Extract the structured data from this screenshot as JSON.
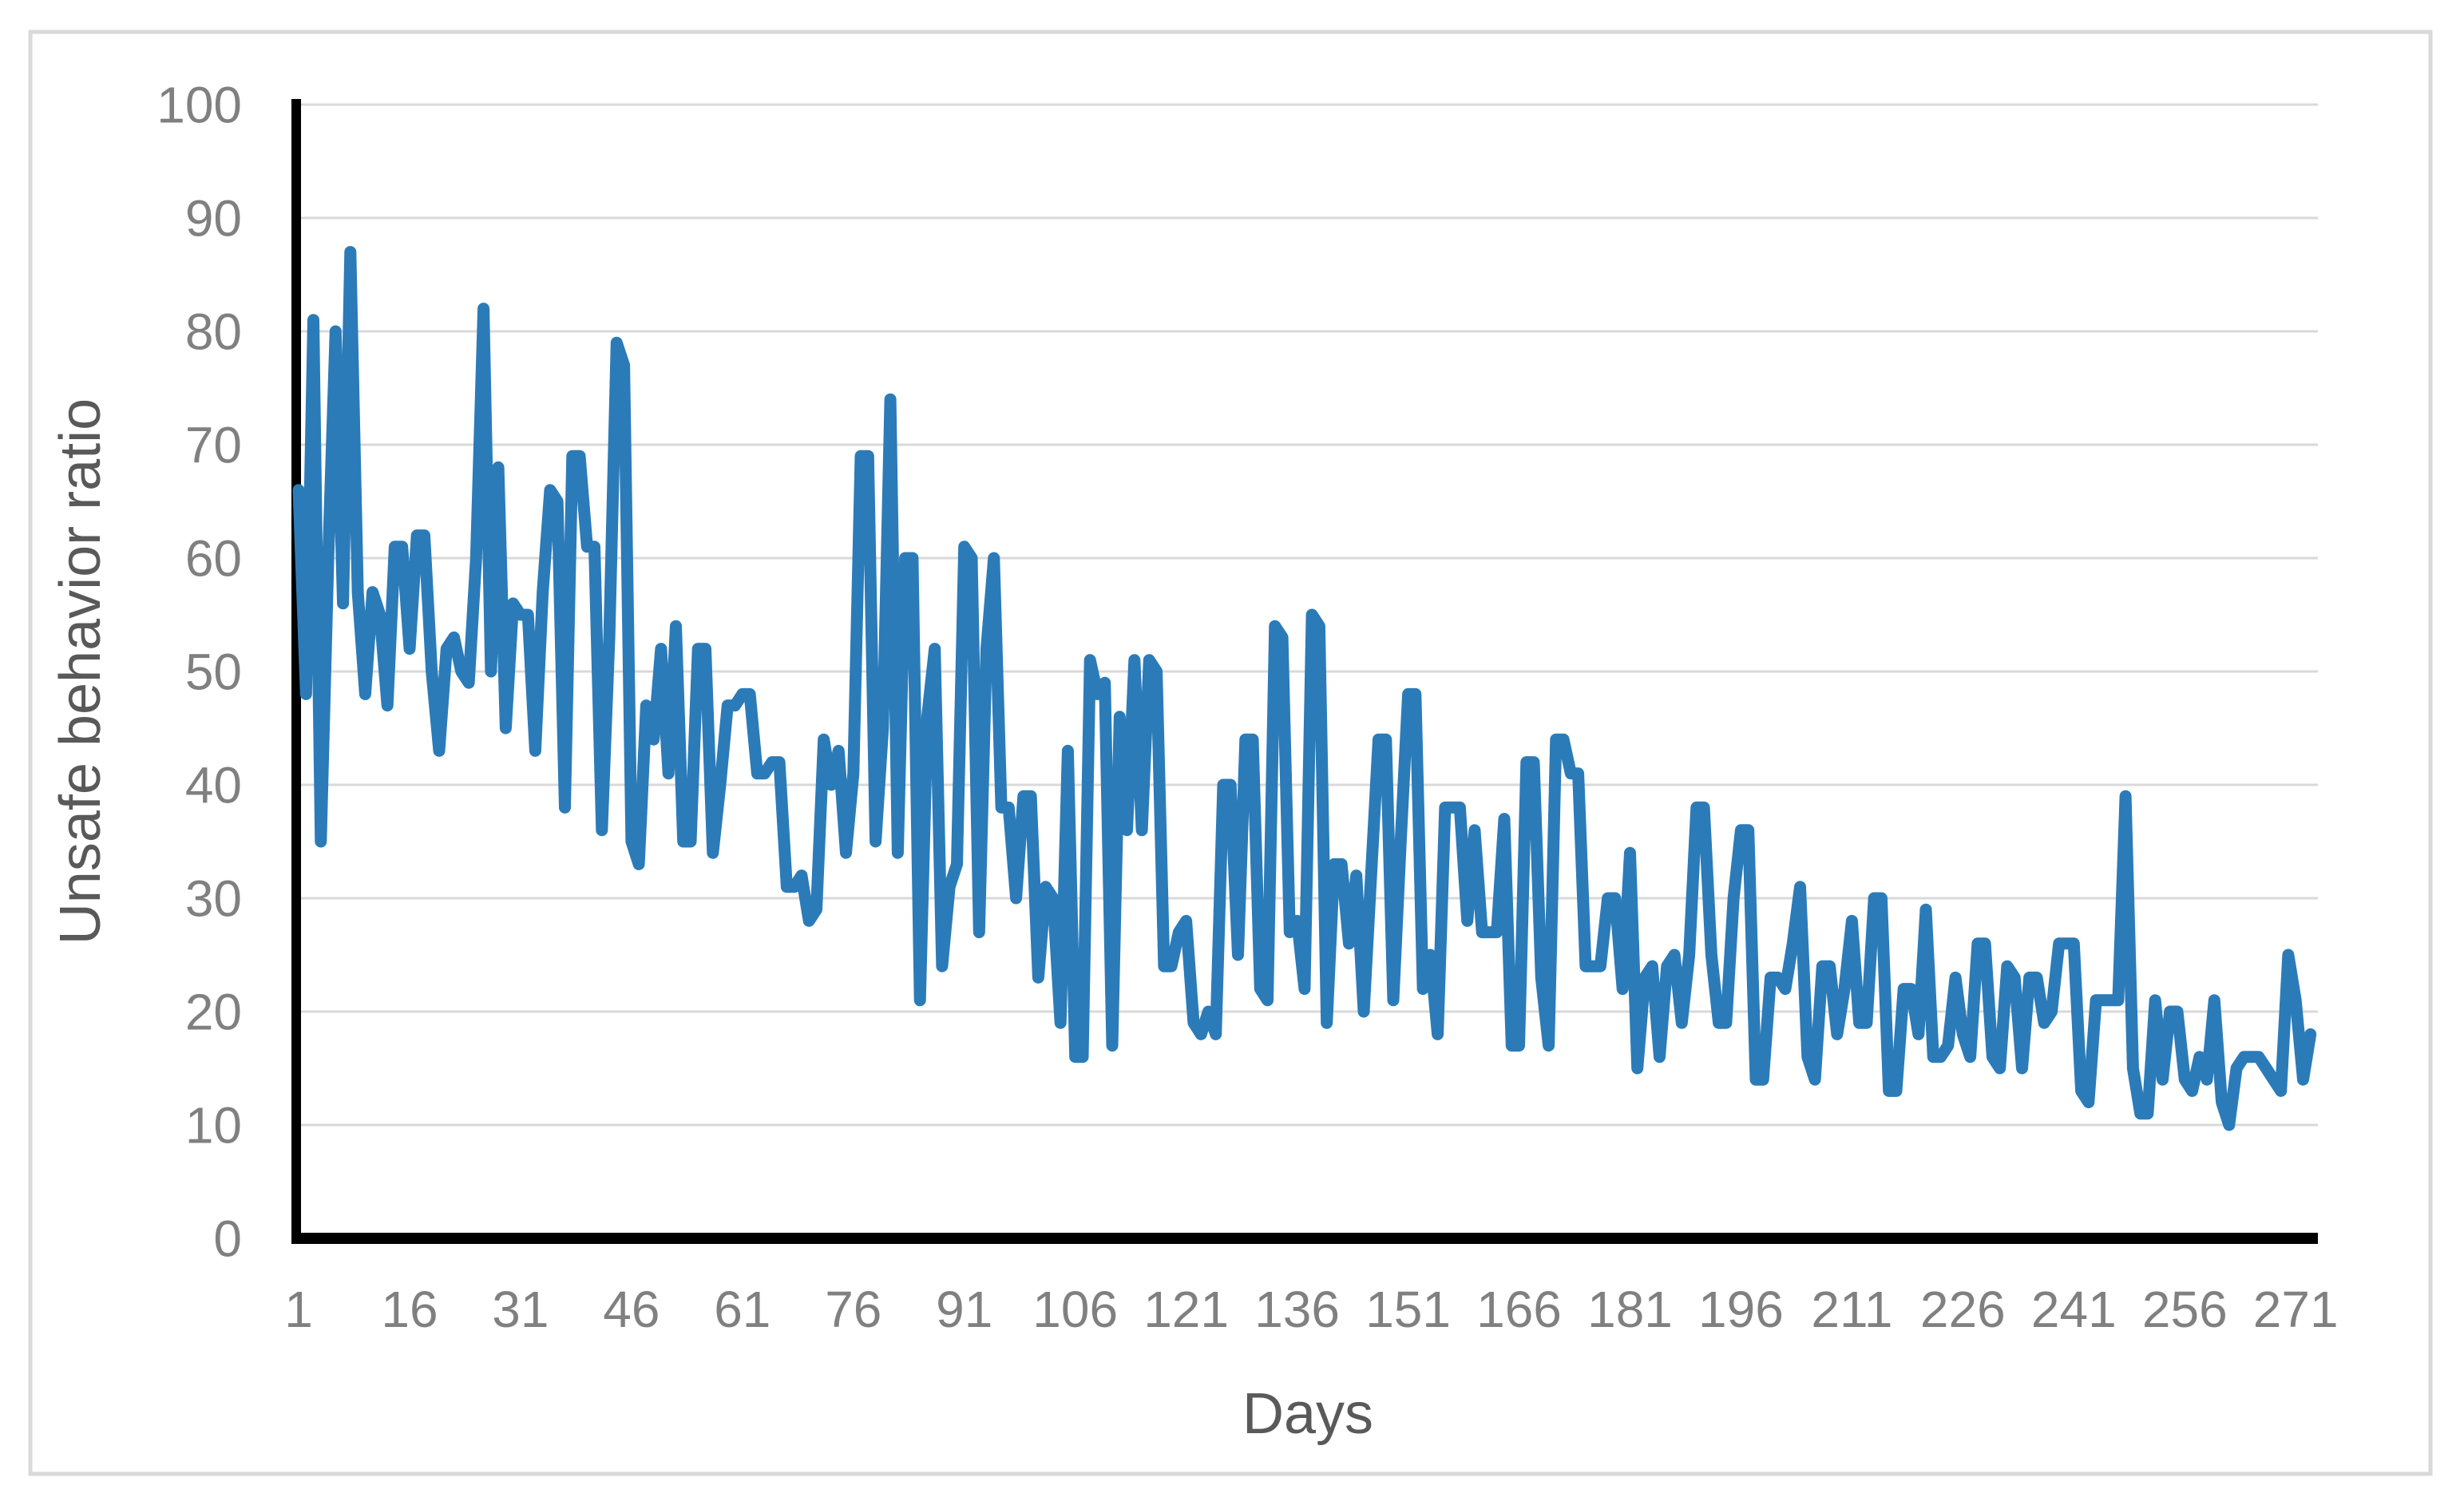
{
  "figure": {
    "background_color": "#ffffff",
    "border_color": "#d9d9d9"
  },
  "chart_data": {
    "type": "line",
    "title": "",
    "xlabel": "Days",
    "ylabel": "Unsafe behavior ratio",
    "legend": "none",
    "grid": "horizontal",
    "ylim": [
      0,
      100
    ],
    "y_ticks": [
      0,
      10,
      20,
      30,
      40,
      50,
      60,
      70,
      80,
      90,
      100
    ],
    "x_start": 1,
    "x_tick_labels": [
      1,
      16,
      31,
      46,
      61,
      76,
      91,
      106,
      121,
      136,
      151,
      166,
      181,
      196,
      211,
      226,
      241,
      256,
      271
    ],
    "line_color": "#2b7bb9",
    "axis_color": "#000000",
    "gridline_color": "#d9d9d9",
    "tick_label_color": "#808080",
    "axis_title_color": "#595959",
    "values": [
      66,
      48,
      81,
      35,
      60,
      80,
      56,
      87,
      57,
      48,
      57,
      55,
      47,
      61,
      61,
      52,
      62,
      62,
      50,
      43,
      52,
      53,
      50,
      49,
      60,
      82,
      50,
      68,
      45,
      56,
      55,
      55,
      43,
      57,
      66,
      65,
      38,
      69,
      69,
      61,
      61,
      36,
      53,
      79,
      77,
      35,
      33,
      47,
      44,
      52,
      41,
      54,
      35,
      35,
      52,
      52,
      34,
      40,
      47,
      47,
      48,
      48,
      41,
      41,
      42,
      42,
      31,
      31,
      32,
      28,
      29,
      44,
      40,
      43,
      34,
      41,
      69,
      69,
      35,
      45,
      74,
      34,
      60,
      60,
      21,
      46,
      52,
      24,
      31,
      33,
      61,
      60,
      27,
      52,
      60,
      38,
      38,
      30,
      39,
      39,
      23,
      31,
      30,
      19,
      43,
      16,
      16,
      51,
      48,
      49,
      17,
      46,
      36,
      51,
      36,
      51,
      50,
      24,
      24,
      27,
      28,
      19,
      18,
      20,
      18,
      40,
      40,
      25,
      44,
      44,
      22,
      21,
      54,
      53,
      27,
      28,
      22,
      55,
      54,
      19,
      33,
      33,
      26,
      32,
      20,
      32,
      44,
      44,
      21,
      35,
      48,
      48,
      22,
      25,
      18,
      38,
      38,
      38,
      28,
      36,
      27,
      27,
      27,
      37,
      17,
      17,
      42,
      42,
      23,
      17,
      44,
      44,
      41,
      41,
      24,
      24,
      24,
      30,
      30,
      22,
      34,
      15,
      23,
      24,
      16,
      24,
      25,
      19,
      25,
      38,
      38,
      25,
      19,
      19,
      30,
      36,
      36,
      14,
      14,
      23,
      23,
      22,
      26,
      31,
      16,
      14,
      24,
      24,
      18,
      22,
      28,
      19,
      19,
      30,
      30,
      13,
      13,
      22,
      22,
      18,
      29,
      16,
      16,
      17,
      23,
      18,
      16,
      26,
      26,
      16,
      15,
      24,
      23,
      15,
      23,
      23,
      19,
      20,
      26,
      26,
      26,
      13,
      12,
      21,
      21,
      21,
      21,
      39,
      15,
      11,
      11,
      21,
      14,
      20,
      20,
      14,
      13,
      16,
      14,
      21,
      12,
      10,
      15,
      16,
      16,
      16,
      15,
      14,
      13,
      25,
      21,
      14,
      18
    ]
  }
}
